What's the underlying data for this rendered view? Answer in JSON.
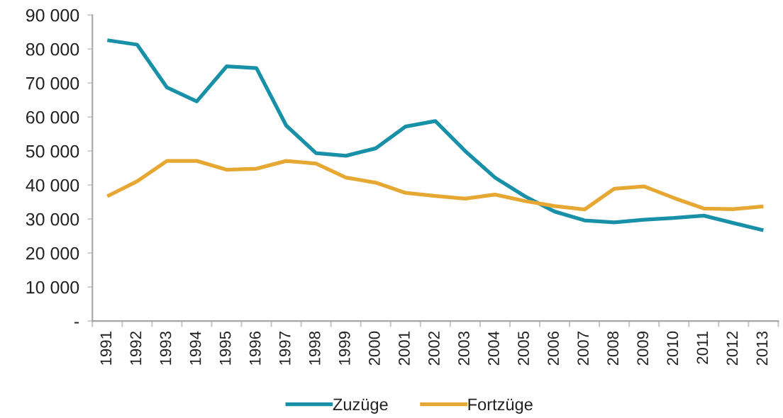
{
  "chart_data": {
    "type": "line",
    "categories": [
      "1991",
      "1992",
      "1993",
      "1994",
      "1995",
      "1996",
      "1997",
      "1998",
      "1999",
      "2000",
      "2001",
      "2002",
      "2003",
      "2004",
      "2005",
      "2006",
      "2007",
      "2008",
      "2009",
      "2010",
      "2011",
      "2012",
      "2013"
    ],
    "series": [
      {
        "name": "Zuzüge",
        "color": "#1790a8",
        "values": [
          82600,
          81300,
          68700,
          64600,
          74900,
          74400,
          57500,
          49400,
          48600,
          50800,
          57200,
          58800,
          50000,
          42200,
          36700,
          32200,
          29600,
          29000,
          29800,
          30300,
          31000,
          28800,
          26700
        ]
      },
      {
        "name": "Fortzüge",
        "color": "#e6a733",
        "values": [
          36700,
          41100,
          47100,
          47100,
          44500,
          44800,
          47100,
          46300,
          42200,
          40700,
          37700,
          36800,
          36000,
          37200,
          35300,
          33800,
          32800,
          38900,
          39600,
          36200,
          33100,
          32900,
          33700
        ]
      }
    ],
    "ylim": [
      0,
      90000
    ],
    "yticks": [
      {
        "value": 0,
        "label": "-"
      },
      {
        "value": 10000,
        "label": "10 000"
      },
      {
        "value": 20000,
        "label": "20 000"
      },
      {
        "value": 30000,
        "label": "30 000"
      },
      {
        "value": 40000,
        "label": "40 000"
      },
      {
        "value": 50000,
        "label": "50 000"
      },
      {
        "value": 60000,
        "label": "60 000"
      },
      {
        "value": 70000,
        "label": "70 000"
      },
      {
        "value": 80000,
        "label": "80 000"
      },
      {
        "value": 90000,
        "label": "90 000"
      }
    ],
    "legend": "bottom",
    "line_style": "solid"
  }
}
